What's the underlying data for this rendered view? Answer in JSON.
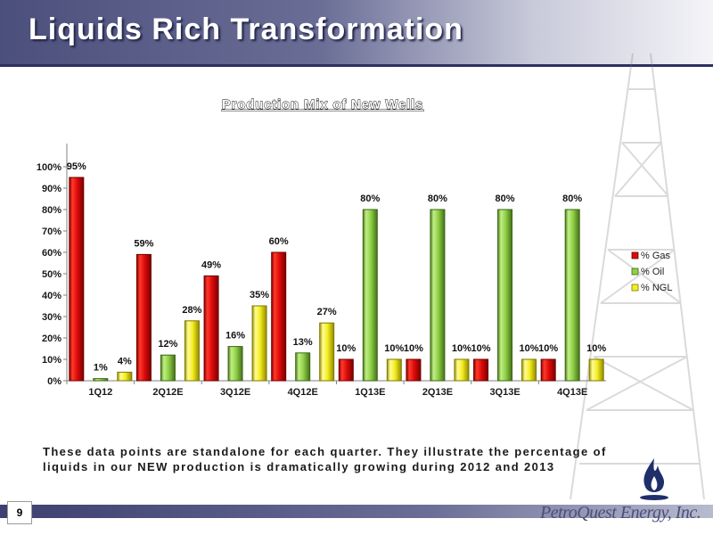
{
  "page": {
    "title": "Liquids Rich Transformation",
    "page_number": "9",
    "note": "These data points are standalone for each quarter.  They illustrate the percentage of liquids in our NEW production is dramatically growing during 2012 and 2013",
    "logo_text": "PetroQuest Energy, Inc."
  },
  "chart_data": {
    "type": "bar",
    "title": "Production Mix of New Wells",
    "xlabel": "",
    "ylabel": "",
    "categories": [
      "1Q12",
      "2Q12E",
      "3Q12E",
      "4Q12E",
      "1Q13E",
      "2Q13E",
      "3Q13E",
      "4Q13E"
    ],
    "series": [
      {
        "name": "% Gas",
        "color": "#dd0a0a",
        "values": [
          95,
          59,
          49,
          60,
          10,
          10,
          10,
          10
        ]
      },
      {
        "name": "% Oil",
        "color": "#8fd045",
        "values": [
          1,
          12,
          16,
          13,
          80,
          80,
          80,
          80
        ]
      },
      {
        "name": "% NGL",
        "color": "#f4ee1f",
        "values": [
          4,
          28,
          35,
          27,
          10,
          10,
          10,
          10
        ]
      }
    ],
    "ylim": [
      0,
      100
    ],
    "ytick_labels": [
      "0%",
      "10%",
      "20%",
      "30%",
      "40%",
      "50%",
      "60%",
      "70%",
      "80%",
      "90%",
      "100%"
    ],
    "value_suffix": "%",
    "grid": false,
    "legend": "right"
  }
}
